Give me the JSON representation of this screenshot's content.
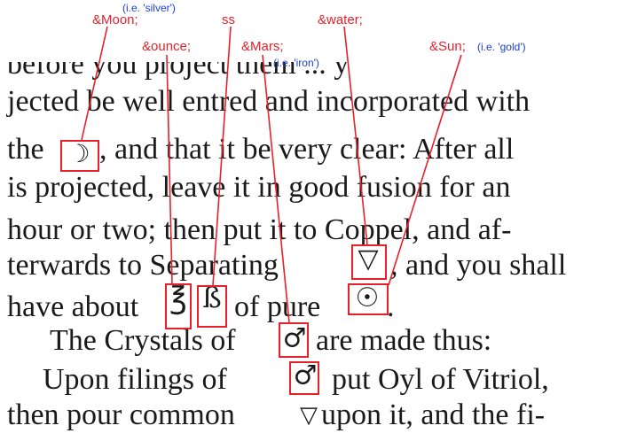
{
  "text_lines": [
    "before you project them ... y",
    "jected be well entred and incorporated with",
    "the",
    ", and that it be very clear: After all",
    "is projected, leave it in good fusion for an",
    "hour or two; then put it to Coppel, and af-",
    "terwards to Separating",
    ", and you shall",
    "have about",
    "of pure",
    ".",
    "The Crystals of",
    "are made thus:",
    "Upon filings of",
    "put Oyl of Vitriol,",
    "then pour common",
    "upon it, and the fi-"
  ],
  "symbols": {
    "moon": "☽",
    "ounce": "℥",
    "ss": "ß",
    "water": "▽",
    "sun": "☉",
    "mars": "♂",
    "water_inline": "▽"
  },
  "annotations": {
    "moon": "&Moon;",
    "ounce": "&ounce;",
    "ss": "ss",
    "mars": "&Mars;",
    "water": "&water;",
    "sun": "&Sun;"
  },
  "notes": {
    "moon": "(i.e. 'silver')",
    "mars": "(i.e. 'iron')",
    "sun": "(i.e. 'gold')"
  },
  "colors": {
    "annotation": "#e8202a",
    "note": "#1a3fd0",
    "ink": "#1a1a1a",
    "background": "#ffffff"
  }
}
